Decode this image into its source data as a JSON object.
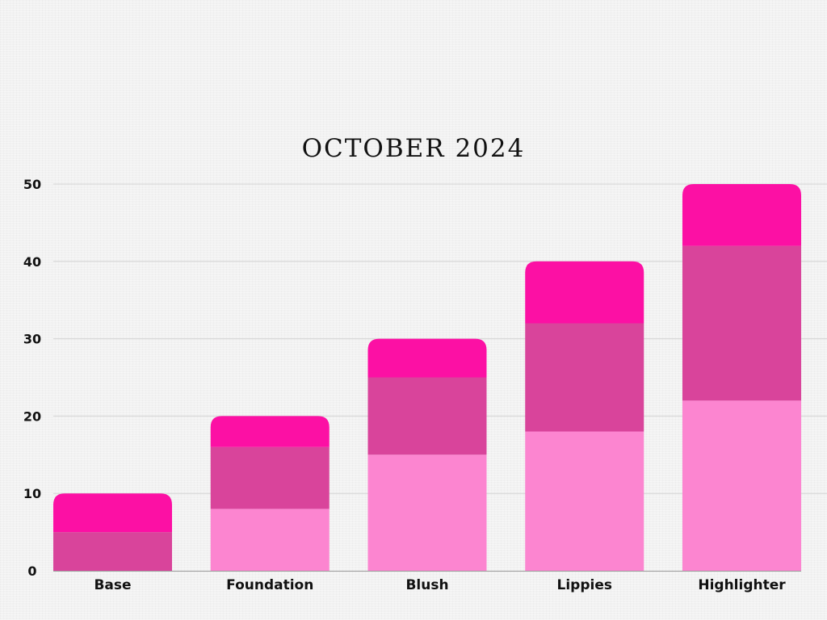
{
  "chart_data": {
    "type": "bar",
    "stacked": true,
    "title": "OCTOBER 2024",
    "xlabel": "",
    "ylabel": "",
    "categories": [
      "Base",
      "Foundation",
      "Blush",
      "Lippies",
      "Highlighter"
    ],
    "series": [
      {
        "color": "#fc85d0",
        "values": [
          0,
          8,
          15,
          18,
          22
        ]
      },
      {
        "color": "#d9449b",
        "values": [
          5,
          8,
          10,
          14,
          20
        ]
      },
      {
        "color": "#fc10a4",
        "values": [
          5,
          4,
          5,
          8,
          8
        ]
      }
    ],
    "ylim": [
      0,
      50
    ],
    "yticks": [
      0,
      10,
      20,
      30,
      40,
      50
    ],
    "grid": true,
    "legend": "none"
  }
}
